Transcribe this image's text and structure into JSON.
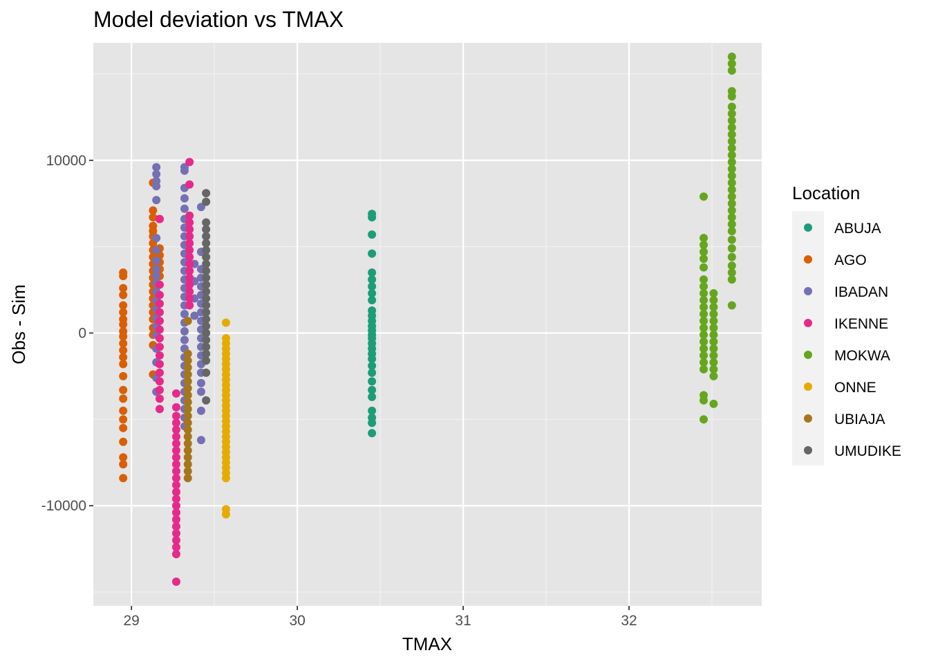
{
  "chart_data": {
    "type": "scatter",
    "title": "Model deviation vs TMAX",
    "xlabel": "TMAX",
    "ylabel": "Obs - Sim",
    "xlim": [
      28.77,
      32.8
    ],
    "ylim": [
      -15800,
      16800
    ],
    "xticks": [
      29,
      30,
      31,
      32
    ],
    "xtick_labels": [
      "29",
      "30",
      "31",
      "32"
    ],
    "yticks": [
      -10000,
      0,
      10000
    ],
    "ytick_labels": [
      "-10000",
      "0",
      "10000"
    ],
    "grid": true,
    "legend": {
      "title": "Location",
      "position": "right"
    },
    "series": [
      {
        "name": "ABUJA",
        "color": "#1b9e77",
        "x": 30.45,
        "y": [
          6900,
          6700,
          5700,
          4600,
          3500,
          3100,
          2700,
          2300,
          1900,
          1300,
          1000,
          700,
          400,
          150,
          -100,
          -300,
          -600,
          -900,
          -1200,
          -1500,
          -1900,
          -2300,
          -2800,
          -3300,
          -3700,
          -4500,
          -4900,
          -5200,
          -5800
        ]
      },
      {
        "name": "AGO",
        "color": "#d95f02",
        "groups": [
          {
            "x": 28.95,
            "y": [
              3500,
              3300,
              2600,
              2200,
              1600,
              1200,
              800,
              500,
              100,
              -200,
              -600,
              -1000,
              -1400,
              -1800,
              -2500,
              -3300,
              -3800,
              -4500,
              -5000,
              -5500,
              -6300,
              -7200,
              -7600,
              -8400
            ]
          },
          {
            "x": 29.13,
            "y": [
              8700,
              7100,
              6700,
              6200,
              5900,
              5600,
              5200,
              4800,
              4400,
              4000,
              3600,
              3200,
              2800,
              2400,
              2000,
              1600,
              1200,
              800,
              300,
              -100,
              -700,
              -2400
            ]
          },
          {
            "x": 29.17,
            "y": [
              6600,
              4900,
              4500,
              4100,
              3700,
              3300
            ]
          }
        ]
      },
      {
        "name": "IBADAN",
        "color": "#7570b3",
        "groups": [
          {
            "x": 29.15,
            "y": [
              9600,
              9200,
              8800,
              8500,
              7700,
              5500,
              4800,
              4200,
              3700,
              3300,
              2900,
              2400,
              1900,
              1400,
              900,
              400,
              -100,
              -900,
              -1700,
              -2600,
              -3400
            ]
          },
          {
            "x": 29.32,
            "y": [
              9600,
              9400,
              8400,
              7800,
              7200,
              6600,
              6100,
              5600,
              5100,
              4600,
              4100,
              3600,
              3100,
              2600,
              2100,
              1600,
              1100,
              600,
              100,
              -400,
              -900,
              -1400,
              -1900,
              -2400,
              -2900,
              -3400,
              -3900,
              -4400,
              -4900,
              -5400
            ]
          },
          {
            "x": 29.42,
            "y": [
              7300,
              4700,
              3700,
              3200,
              2700,
              2200,
              1700,
              1200,
              700,
              200,
              -300,
              -800,
              -1300,
              -1800,
              -2300,
              -2900,
              -3400,
              -4500,
              -6200
            ]
          },
          {
            "x": 29.38,
            "y": [
              4000,
              3000,
              2000,
              1000
            ]
          }
        ]
      },
      {
        "name": "IKENNE",
        "color": "#e7298a",
        "groups": [
          {
            "x": 29.35,
            "y": [
              9900,
              8600,
              6800,
              6400,
              6000,
              5600,
              5200,
              4800,
              4400,
              4000,
              3600,
              3200,
              2800,
              2400,
              2000,
              1600
            ]
          },
          {
            "x": 29.17,
            "y": [
              6600,
              2800,
              2200,
              1700,
              1200,
              700,
              200,
              -300,
              -800,
              -1300,
              -1800,
              -2300,
              -2800,
              -3300,
              -3800,
              -4400
            ]
          },
          {
            "x": 29.27,
            "y": [
              -3500,
              -4300,
              -4800,
              -5200,
              -5600,
              -6000,
              -6400,
              -6800,
              -7200,
              -7600,
              -8000,
              -8400,
              -8800,
              -9200,
              -9600,
              -10000,
              -10400,
              -10800,
              -11200,
              -11600,
              -12000,
              -12400,
              -12800,
              -14400
            ]
          }
        ]
      },
      {
        "name": "MOKWA",
        "color": "#66a61e",
        "groups": [
          {
            "x": 32.45,
            "y": [
              7900,
              5500,
              5100,
              4700,
              4300,
              3800,
              3100,
              2700,
              2300,
              1900,
              1500,
              1100,
              700,
              300,
              -100,
              -500,
              -900,
              -1300,
              -1700,
              -2100,
              -3600,
              -3900,
              -5000
            ]
          },
          {
            "x": 32.51,
            "y": [
              2300,
              1900,
              1500,
              1100,
              700,
              300,
              -100,
              -500,
              -900,
              -1300,
              -1700,
              -2100,
              -2500,
              -4100
            ]
          },
          {
            "x": 32.62,
            "y": [
              16000,
              15600,
              15200,
              14000,
              13700,
              13100,
              12700,
              12300,
              11900,
              11500,
              11100,
              10700,
              10300,
              9900,
              9500,
              9100,
              8700,
              8300,
              7900,
              7500,
              7100,
              6700,
              6300,
              5900,
              5400,
              4900,
              4400,
              3900,
              3500,
              3100,
              1600
            ]
          }
        ]
      },
      {
        "name": "ONNE",
        "color": "#e6ab02",
        "x": 29.57,
        "y": [
          600,
          -300,
          -600,
          -900,
          -1200,
          -1500,
          -1800,
          -2100,
          -2400,
          -2700,
          -3000,
          -3300,
          -3600,
          -3900,
          -4200,
          -4500,
          -4800,
          -5100,
          -5400,
          -5700,
          -6000,
          -6300,
          -6600,
          -6900,
          -7200,
          -7500,
          -7800,
          -8100,
          -8400,
          -10200,
          -10500
        ]
      },
      {
        "name": "UBIAJA",
        "color": "#a6761d",
        "x": 29.34,
        "y": [
          700,
          -1200,
          -1600,
          -2000,
          -2400,
          -2800,
          -3200,
          -3600,
          -4000,
          -4400,
          -4800,
          -5200,
          -5600,
          -6000,
          -6400,
          -6800,
          -7200,
          -7600,
          -8000,
          -8400
        ]
      },
      {
        "name": "UMUDIKE",
        "color": "#666666",
        "x": 29.45,
        "y": [
          8100,
          7600,
          6400,
          6000,
          5600,
          5200,
          4800,
          4400,
          4000,
          3600,
          3200,
          2800,
          2400,
          2000,
          1600,
          1200,
          800,
          400,
          0,
          -400,
          -800,
          -1200,
          -1600,
          -2300,
          -3900
        ]
      }
    ]
  }
}
